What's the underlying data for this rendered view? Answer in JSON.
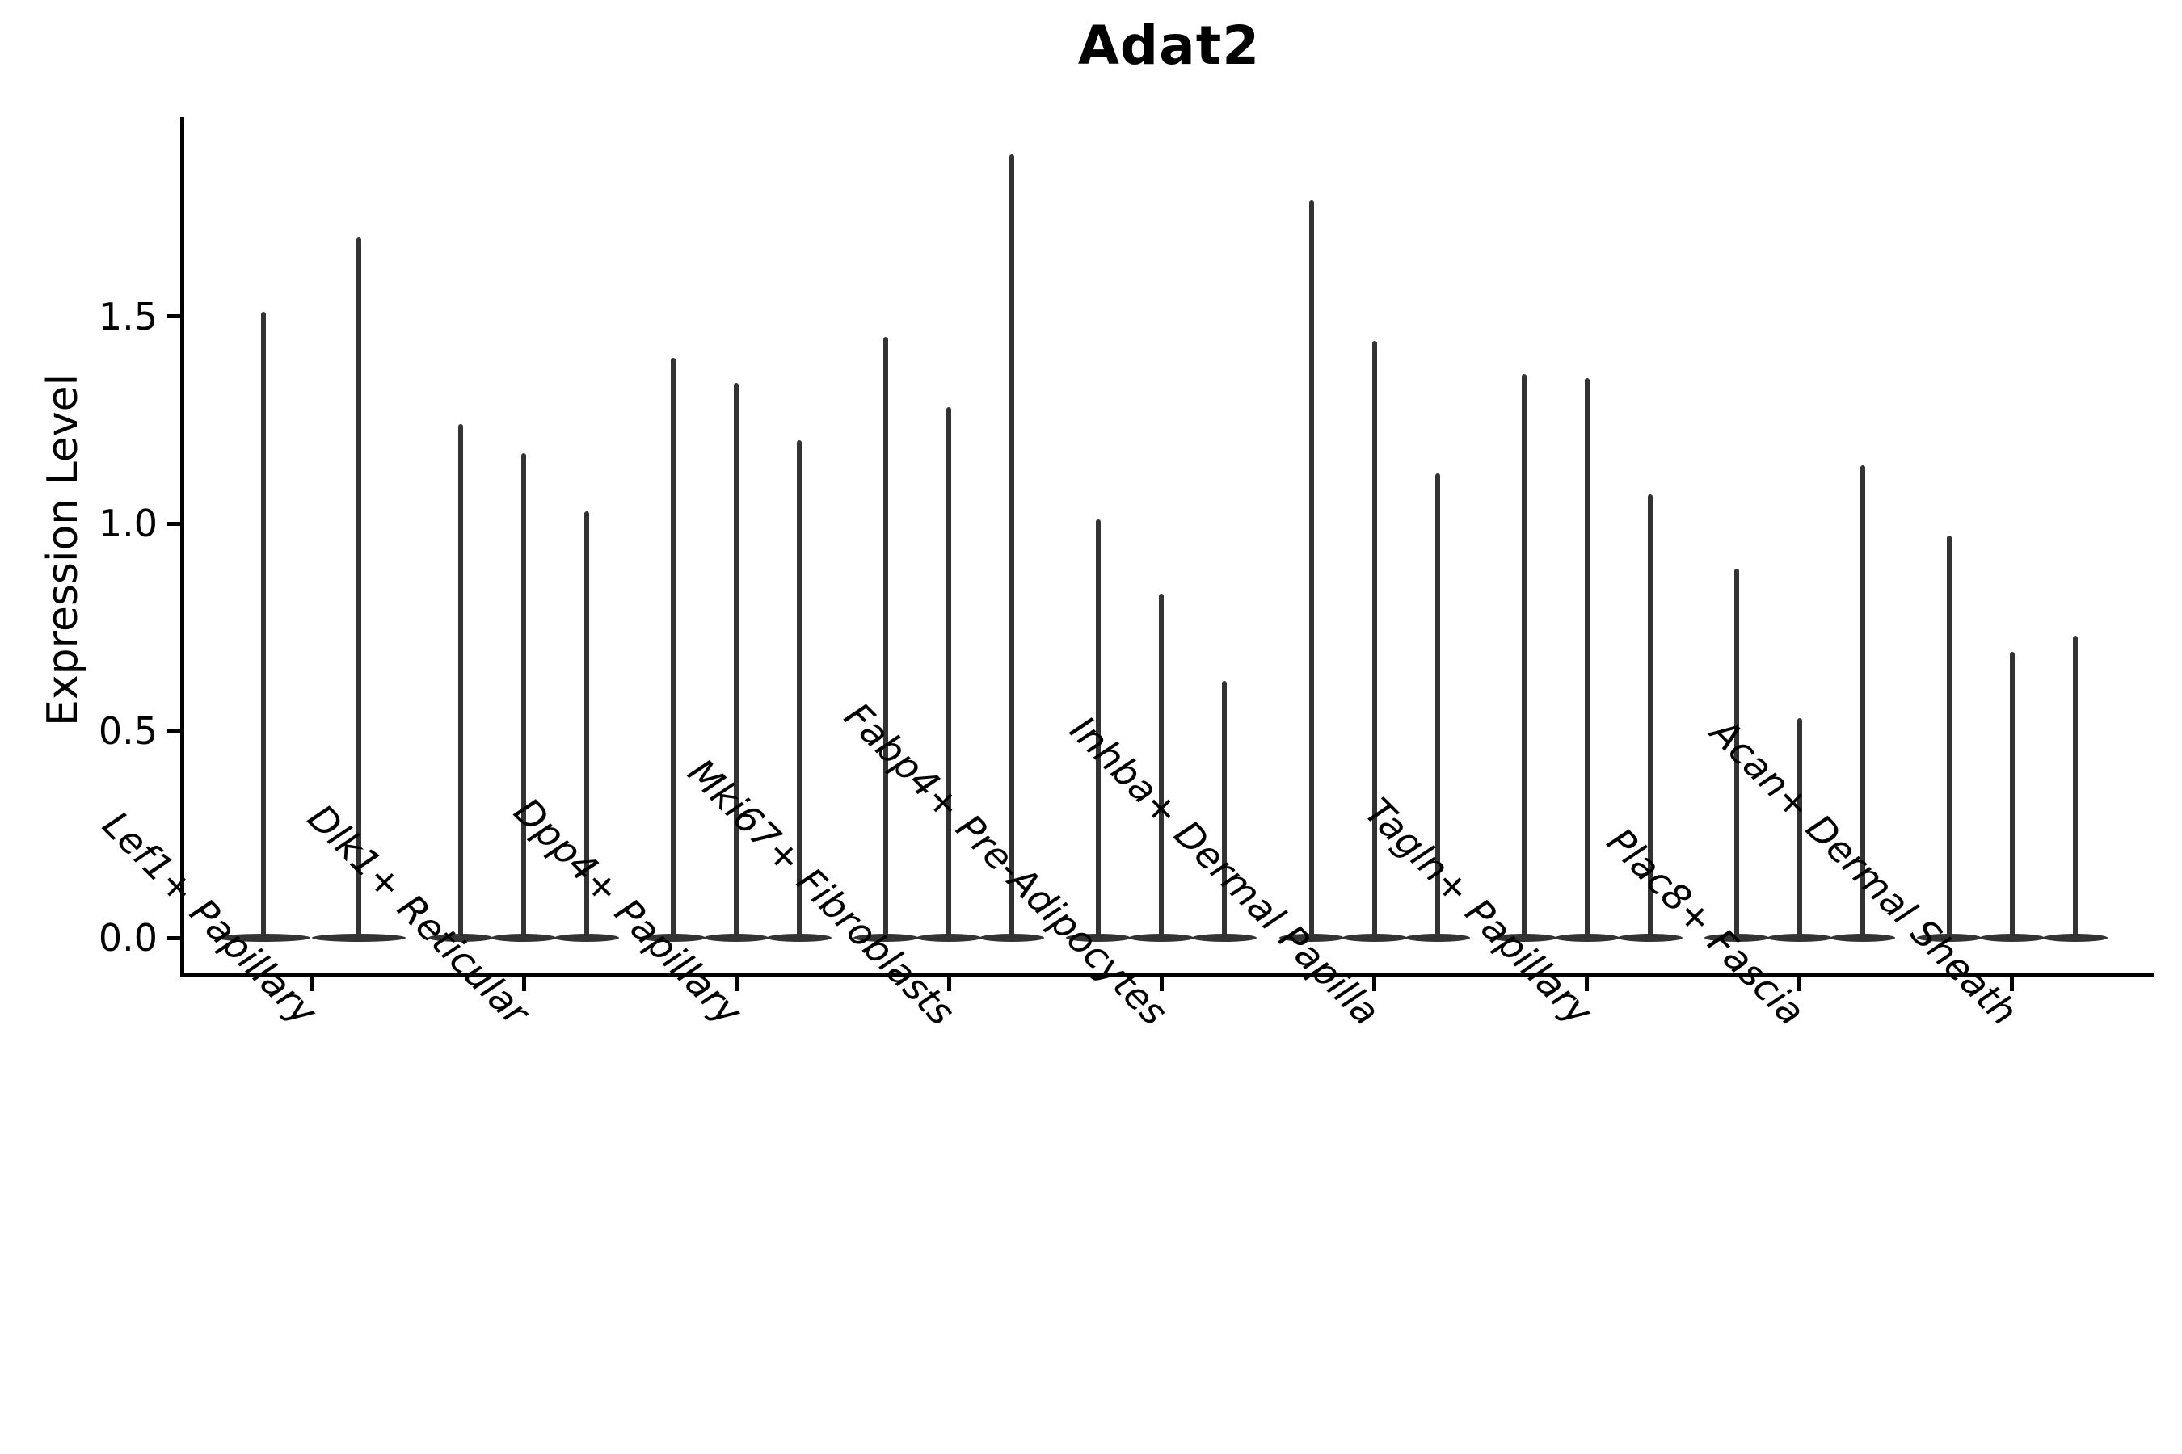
{
  "title": "Adat2",
  "y_axis": {
    "label": "Expression Level",
    "ticks": [
      "0.0",
      "0.5",
      "1.0",
      "1.5"
    ]
  },
  "colors": {
    "violin": "#333333",
    "axis": "#000000",
    "text": "#000000",
    "background": "#ffffff"
  },
  "chart_data": {
    "type": "violin",
    "title": "Adat2",
    "xlabel": "",
    "ylabel": "Expression Level",
    "ylim": [
      -0.09,
      1.98
    ],
    "yticks": [
      0.0,
      0.5,
      1.0,
      1.5
    ],
    "grid": false,
    "legend": "none",
    "description": "Each group shows thin violins: dense mass at 0 (flat lens) with a thin spike up to the maximum expression value.",
    "categories": [
      "Lef1+ Papillary",
      "Dlk1+ Reticular",
      "Dpp4+ Papillary",
      "Mki67+ Fibroblasts",
      "Fabp4+ Pre-Adipocytes",
      "Inhba+ Dermal Papilla",
      "Tagln+ Papillary",
      "Plac8+ Fascia",
      "Acan+ Dermal Sheath"
    ],
    "groups": [
      {
        "label": "Lef1+ Papillary",
        "violin_max_values": [
          1.51,
          1.69
        ]
      },
      {
        "label": "Dlk1+ Reticular",
        "violin_max_values": [
          1.24,
          1.17,
          1.03
        ]
      },
      {
        "label": "Dpp4+ Papillary",
        "violin_max_values": [
          1.4,
          1.34,
          1.2
        ]
      },
      {
        "label": "Mki67+ Fibroblasts",
        "violin_max_values": [
          1.45,
          1.28,
          1.89
        ]
      },
      {
        "label": "Fabp4+ Pre-Adipocytes",
        "violin_max_values": [
          1.01,
          0.83,
          0.62
        ]
      },
      {
        "label": "Inhba+ Dermal Papilla",
        "violin_max_values": [
          1.78,
          1.44,
          1.12
        ]
      },
      {
        "label": "Tagln+ Papillary",
        "violin_max_values": [
          1.36,
          1.35,
          1.07
        ]
      },
      {
        "label": "Plac8+ Fascia",
        "violin_max_values": [
          0.89,
          0.53,
          1.14
        ]
      },
      {
        "label": "Acan+ Dermal Sheath",
        "violin_max_values": [
          0.97,
          0.69,
          0.73
        ]
      }
    ]
  }
}
